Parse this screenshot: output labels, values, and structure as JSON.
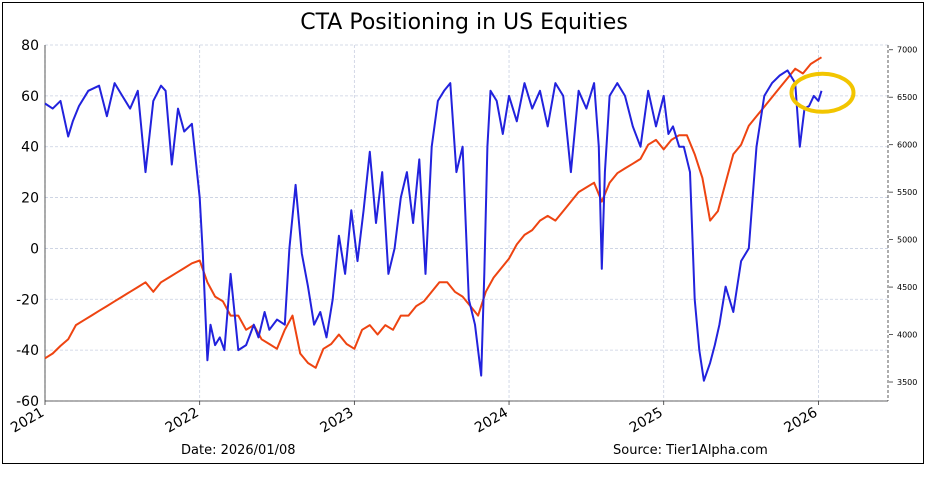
{
  "chart_data": {
    "type": "line",
    "title": "CTA Positioning in US Equities",
    "xlabel": "",
    "ylabel": "",
    "x_ticks": [
      "2021",
      "2022",
      "2023",
      "2024",
      "2025",
      "2026"
    ],
    "x_range": [
      2021.0,
      2026.45
    ],
    "ylim_left": [
      -60,
      80
    ],
    "yticks_left": [
      -60,
      -40,
      -20,
      0,
      20,
      40,
      60,
      80
    ],
    "ylim_right": [
      3300,
      7050
    ],
    "yticks_right": [
      3500,
      4000,
      4500,
      5000,
      5500,
      6000,
      6500,
      7000
    ],
    "grid": true,
    "series": [
      {
        "color": "#2222dd",
        "axis": "left",
        "x": [
          2021.0,
          2021.05,
          2021.1,
          2021.15,
          2021.18,
          2021.22,
          2021.28,
          2021.35,
          2021.4,
          2021.45,
          2021.5,
          2021.55,
          2021.6,
          2021.65,
          2021.7,
          2021.75,
          2021.78,
          2021.82,
          2021.86,
          2021.9,
          2021.95,
          2022.0,
          2022.02,
          2022.05,
          2022.07,
          2022.1,
          2022.13,
          2022.16,
          2022.2,
          2022.25,
          2022.3,
          2022.35,
          2022.38,
          2022.42,
          2022.45,
          2022.5,
          2022.55,
          2022.58,
          2022.62,
          2022.66,
          2022.7,
          2022.74,
          2022.78,
          2022.82,
          2022.86,
          2022.9,
          2022.94,
          2022.98,
          2023.02,
          2023.06,
          2023.1,
          2023.14,
          2023.18,
          2023.22,
          2023.26,
          2023.3,
          2023.34,
          2023.38,
          2023.42,
          2023.46,
          2023.5,
          2023.54,
          2023.58,
          2023.62,
          2023.66,
          2023.7,
          2023.74,
          2023.78,
          2023.82,
          2023.84,
          2023.86,
          2023.88,
          2023.92,
          2023.96,
          2024.0,
          2024.05,
          2024.1,
          2024.15,
          2024.2,
          2024.25,
          2024.3,
          2024.35,
          2024.4,
          2024.45,
          2024.5,
          2024.55,
          2024.58,
          2024.6,
          2024.62,
          2024.65,
          2024.7,
          2024.75,
          2024.8,
          2024.85,
          2024.9,
          2024.95,
          2025.0,
          2025.03,
          2025.06,
          2025.1,
          2025.13,
          2025.17,
          2025.2,
          2025.23,
          2025.26,
          2025.3,
          2025.33,
          2025.36,
          2025.4,
          2025.45,
          2025.5,
          2025.55,
          2025.6,
          2025.65,
          2025.7,
          2025.75,
          2025.8,
          2025.85,
          2025.88,
          2025.91,
          2025.94,
          2025.97,
          2026.0,
          2026.02
        ],
        "y": [
          57,
          55,
          58,
          44,
          50,
          56,
          62,
          64,
          52,
          65,
          60,
          55,
          62,
          30,
          58,
          64,
          62,
          33,
          55,
          46,
          49,
          20,
          -2,
          -44,
          -30,
          -38,
          -35,
          -40,
          -10,
          -40,
          -38,
          -30,
          -35,
          -25,
          -32,
          -28,
          -30,
          0,
          25,
          -2,
          -15,
          -30,
          -25,
          -35,
          -20,
          5,
          -10,
          15,
          -5,
          15,
          38,
          10,
          30,
          -10,
          0,
          20,
          30,
          10,
          35,
          -10,
          40,
          58,
          62,
          65,
          30,
          40,
          -20,
          -30,
          -50,
          -10,
          40,
          62,
          58,
          45,
          60,
          50,
          65,
          55,
          62,
          48,
          65,
          60,
          30,
          62,
          55,
          65,
          40,
          -8,
          30,
          60,
          65,
          60,
          48,
          40,
          62,
          48,
          60,
          45,
          48,
          40,
          40,
          30,
          -20,
          -40,
          -52,
          -45,
          -38,
          -30,
          -15,
          -25,
          -5,
          0,
          40,
          60,
          65,
          68,
          70,
          65,
          40,
          55,
          56,
          60,
          58,
          62
        ]
      },
      {
        "color": "#ee4411",
        "axis": "right",
        "x": [
          2021.0,
          2021.05,
          2021.1,
          2021.15,
          2021.2,
          2021.25,
          2021.3,
          2021.35,
          2021.4,
          2021.45,
          2021.5,
          2021.55,
          2021.6,
          2021.65,
          2021.7,
          2021.75,
          2021.8,
          2021.85,
          2021.9,
          2021.95,
          2022.0,
          2022.05,
          2022.1,
          2022.15,
          2022.2,
          2022.25,
          2022.3,
          2022.35,
          2022.4,
          2022.45,
          2022.5,
          2022.55,
          2022.6,
          2022.65,
          2022.7,
          2022.75,
          2022.8,
          2022.85,
          2022.9,
          2022.95,
          2023.0,
          2023.05,
          2023.1,
          2023.15,
          2023.2,
          2023.25,
          2023.3,
          2023.35,
          2023.4,
          2023.45,
          2023.5,
          2023.55,
          2023.6,
          2023.65,
          2023.7,
          2023.75,
          2023.8,
          2023.85,
          2023.9,
          2023.95,
          2024.0,
          2024.05,
          2024.1,
          2024.15,
          2024.2,
          2024.25,
          2024.3,
          2024.35,
          2024.4,
          2024.45,
          2024.5,
          2024.55,
          2024.6,
          2024.65,
          2024.7,
          2024.75,
          2024.8,
          2024.85,
          2024.9,
          2024.95,
          2025.0,
          2025.05,
          2025.1,
          2025.15,
          2025.2,
          2025.25,
          2025.3,
          2025.35,
          2025.4,
          2025.45,
          2025.5,
          2025.55,
          2025.6,
          2025.65,
          2025.7,
          2025.75,
          2025.8,
          2025.85,
          2025.9,
          2025.95,
          2026.0,
          2026.02
        ],
        "y": [
          3750,
          3800,
          3880,
          3950,
          4100,
          4150,
          4200,
          4250,
          4300,
          4350,
          4400,
          4450,
          4500,
          4550,
          4450,
          4550,
          4600,
          4650,
          4700,
          4750,
          4780,
          4550,
          4400,
          4350,
          4200,
          4200,
          4050,
          4100,
          3950,
          3900,
          3850,
          4050,
          4200,
          3800,
          3700,
          3650,
          3850,
          3900,
          4000,
          3900,
          3850,
          4050,
          4100,
          4000,
          4100,
          4050,
          4200,
          4200,
          4300,
          4350,
          4450,
          4550,
          4550,
          4450,
          4400,
          4300,
          4200,
          4450,
          4600,
          4700,
          4800,
          4950,
          5050,
          5100,
          5200,
          5250,
          5200,
          5300,
          5400,
          5500,
          5550,
          5600,
          5400,
          5600,
          5700,
          5750,
          5800,
          5850,
          6000,
          6050,
          5950,
          6050,
          6100,
          6100,
          5900,
          5650,
          5200,
          5300,
          5600,
          5900,
          6000,
          6200,
          6300,
          6400,
          6500,
          6600,
          6700,
          6800,
          6750,
          6850,
          6900,
          6920
        ]
      }
    ],
    "annotations": [
      {
        "type": "ellipse",
        "color": "#f2c500",
        "description": "highlight circle around latest readings"
      }
    ]
  },
  "footer": {
    "date_text": "Date: 2026/01/08",
    "source_text": "Source: Tier1Alpha.com"
  },
  "colors": {
    "left_series": "#2222dd",
    "right_series": "#ee4411",
    "highlight": "#f2c500",
    "grid": "#c8cfe0"
  }
}
